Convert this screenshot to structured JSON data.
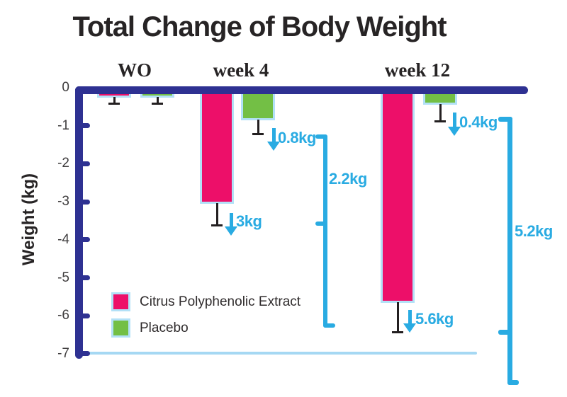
{
  "title": "Total Change of Body Weight",
  "y_axis": {
    "label": "Weight (kg)",
    "ticks": [
      "0",
      "-1",
      "-2",
      "-3",
      "-4",
      "-5",
      "-6",
      "-7"
    ]
  },
  "groups": [
    "WO",
    "week 4",
    "week 12"
  ],
  "legend": {
    "items": [
      {
        "label": "Citrus Polyphenolic Extract",
        "color": "#ed0f69"
      },
      {
        "label": "Placebo",
        "color": "#73bf45"
      }
    ]
  },
  "colors": {
    "axis": "#2e3192",
    "extract": "#ed0f69",
    "placebo": "#73bf45",
    "annotation": "#29abe2",
    "bar_outline": "#b3e1f7",
    "baseline": "#a5d8f3",
    "error_bar": "#231f20",
    "text_dark": "#272425"
  },
  "chart_data": {
    "type": "bar",
    "categories": [
      "WO",
      "week 4",
      "week 12"
    ],
    "series": [
      {
        "name": "Citrus Polyphenolic Extract",
        "values": [
          -0.2,
          -3.0,
          -5.6
        ],
        "errors": [
          0.2,
          0.6,
          0.8
        ]
      },
      {
        "name": "Placebo",
        "values": [
          -0.2,
          -0.8,
          -0.4
        ],
        "errors": [
          0.2,
          0.4,
          0.45
        ]
      }
    ],
    "title": "Total Change of Body Weight",
    "xlabel": "",
    "ylabel": "Weight (kg)",
    "ylim": [
      -7,
      0
    ],
    "grid": false,
    "legend_position": "inside-bottom-left",
    "annotations": [
      {
        "text": "3kg",
        "type": "value-arrow",
        "series": "Citrus Polyphenolic Extract",
        "category": "week 4"
      },
      {
        "text": "0.8kg",
        "type": "value-arrow",
        "series": "Placebo",
        "category": "week 4"
      },
      {
        "text": "5.6kg",
        "type": "value-arrow",
        "series": "Citrus Polyphenolic Extract",
        "category": "week 12"
      },
      {
        "text": "0.4kg",
        "type": "value-arrow",
        "series": "Placebo",
        "category": "week 12"
      },
      {
        "text": "2.2kg",
        "type": "difference-bracket",
        "category": "week 4"
      },
      {
        "text": "5.2kg",
        "type": "difference-bracket",
        "category": "week 12"
      }
    ]
  }
}
